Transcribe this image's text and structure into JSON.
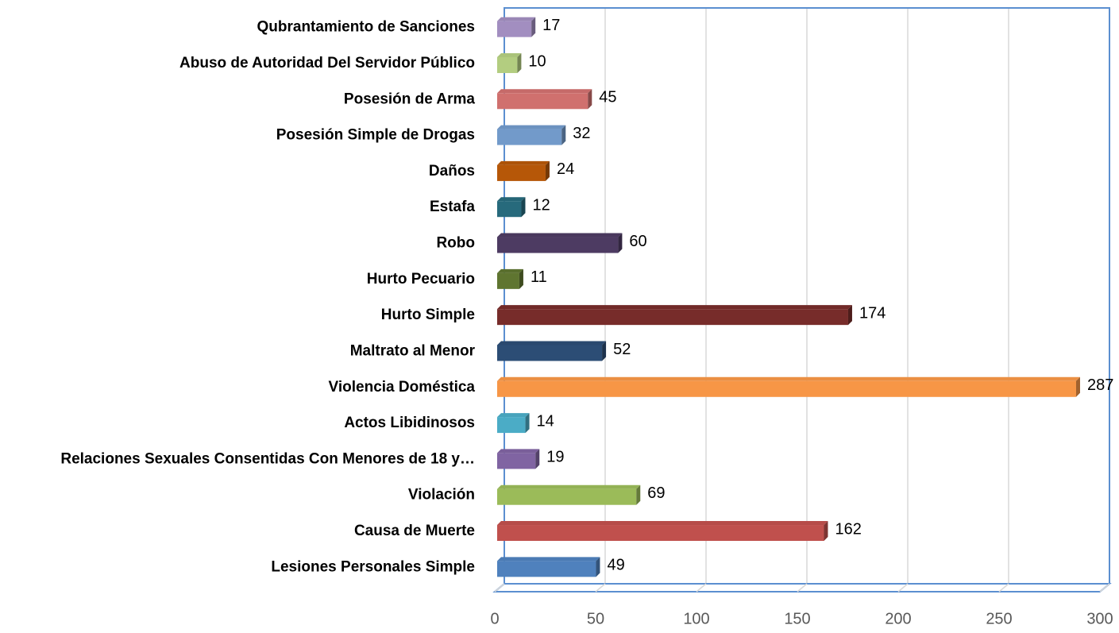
{
  "chart_data": {
    "type": "bar3d_horizontal",
    "categories": [
      "Lesiones Personales Simple",
      "Causa de Muerte",
      "Violación",
      "Relaciones Sexuales Consentidas Con Menores de 18 y…",
      "Actos Libidinosos",
      "Violencia Doméstica",
      "Maltrato al Menor",
      "Hurto Simple",
      "Hurto Pecuario",
      "Robo",
      "Estafa",
      "Daños",
      "Posesión Simple de Drogas",
      "Posesión de Arma",
      "Abuso de Autoridad Del Servidor Público",
      "Qubrantamiento de Sanciones"
    ],
    "values": [
      49,
      162,
      69,
      19,
      14,
      287,
      52,
      174,
      11,
      60,
      12,
      24,
      32,
      45,
      10,
      17
    ],
    "colors": [
      "#4f81bd",
      "#c0504d",
      "#9bbb59",
      "#8064a2",
      "#4bacc6",
      "#f79646",
      "#2c4d75",
      "#772c2a",
      "#5f7530",
      "#4d3b62",
      "#276a7c",
      "#b65708",
      "#729aca",
      "#d0706e",
      "#b3cd80",
      "#a28ec0"
    ],
    "xlim": [
      0,
      300
    ],
    "xticks": [
      0,
      50,
      100,
      150,
      200,
      250,
      300
    ],
    "grid": true
  }
}
